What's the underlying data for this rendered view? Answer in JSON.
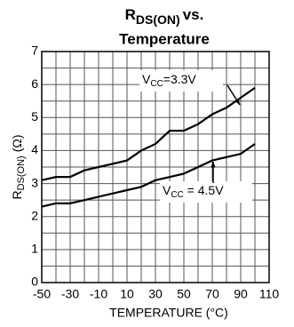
{
  "chart_data": {
    "type": "line",
    "title": {
      "symbol": "R",
      "subscript": "DS(ON)",
      "text": "vs.",
      "line2": "Temperature"
    },
    "x_label": "TEMPERATURE (°C)",
    "y_label": {
      "symbol": "R",
      "subscript": "DS(ON)",
      "text": "(Ω)"
    },
    "x": [
      -50,
      -40,
      -30,
      -20,
      -10,
      0,
      10,
      20,
      30,
      40,
      50,
      60,
      70,
      80,
      90,
      100
    ],
    "series": [
      {
        "name": {
          "prefix": "V",
          "subscript": "CC",
          "text": "=3.3V"
        },
        "color": "#000000",
        "values": [
          3.1,
          3.2,
          3.2,
          3.4,
          3.5,
          3.6,
          3.7,
          4.0,
          4.2,
          4.6,
          4.6,
          4.8,
          5.1,
          5.3,
          5.6,
          5.9
        ]
      },
      {
        "name": {
          "prefix": "V",
          "subscript": "CC",
          "text": " = 4.5V"
        },
        "color": "#000000",
        "values": [
          2.3,
          2.4,
          2.4,
          2.5,
          2.6,
          2.7,
          2.8,
          2.9,
          3.1,
          3.2,
          3.3,
          3.5,
          3.7,
          3.8,
          3.9,
          4.2
        ]
      }
    ],
    "xlim": [
      -50,
      110
    ],
    "xticks": [
      -50,
      -30,
      -10,
      10,
      30,
      50,
      70,
      90,
      110
    ],
    "xminorticks": [
      -40,
      -20,
      0,
      20,
      40,
      60,
      80,
      100
    ],
    "ylim": [
      0,
      7
    ],
    "yticks": [
      0,
      1,
      2,
      3,
      4,
      5,
      6,
      7
    ],
    "yminorticks": [
      0.5,
      1.5,
      2.5,
      3.5,
      4.5,
      5.5,
      6.5
    ],
    "grid": true
  }
}
